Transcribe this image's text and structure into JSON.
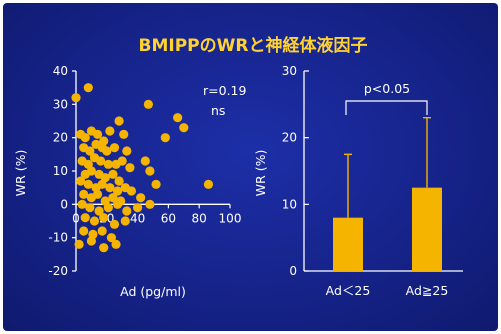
{
  "slide": {
    "title": "BMIPPのWRと神経体液因子"
  },
  "chart_data": [
    {
      "type": "scatter",
      "xlabel": "Ad (pg/ml)",
      "ylabel": "WR (%)",
      "xlim": [
        0,
        100
      ],
      "ylim": [
        -20,
        40
      ],
      "xticks": [
        "0",
        "20",
        "40",
        "60",
        "80",
        "100"
      ],
      "yticks": [
        "40",
        "30",
        "20",
        "10",
        "0",
        "-10",
        "-20"
      ],
      "annotations": [
        "r=0.19",
        "ns"
      ],
      "color": "#f5b400",
      "points": [
        [
          0,
          32
        ],
        [
          8,
          35
        ],
        [
          3,
          21
        ],
        [
          10,
          22
        ],
        [
          6,
          20
        ],
        [
          14,
          21
        ],
        [
          18,
          19
        ],
        [
          22,
          22
        ],
        [
          28,
          25
        ],
        [
          31,
          21
        ],
        [
          5,
          17
        ],
        [
          9,
          16
        ],
        [
          13,
          18
        ],
        [
          17,
          17
        ],
        [
          20,
          16
        ],
        [
          25,
          17
        ],
        [
          33,
          16
        ],
        [
          30,
          13
        ],
        [
          4,
          13
        ],
        [
          8,
          12
        ],
        [
          12,
          14
        ],
        [
          16,
          13
        ],
        [
          21,
          12
        ],
        [
          26,
          12
        ],
        [
          35,
          11
        ],
        [
          6,
          9
        ],
        [
          10,
          10
        ],
        [
          15,
          9
        ],
        [
          19,
          8
        ],
        [
          24,
          9
        ],
        [
          28,
          7
        ],
        [
          3,
          7
        ],
        [
          8,
          6
        ],
        [
          13,
          5
        ],
        [
          17,
          6
        ],
        [
          22,
          5
        ],
        [
          27,
          4
        ],
        [
          32,
          5
        ],
        [
          5,
          3
        ],
        [
          10,
          2
        ],
        [
          14,
          3
        ],
        [
          19,
          1
        ],
        [
          24,
          2
        ],
        [
          29,
          1
        ],
        [
          36,
          4
        ],
        [
          42,
          2
        ],
        [
          4,
          0
        ],
        [
          9,
          -1
        ],
        [
          15,
          -2
        ],
        [
          21,
          -1
        ],
        [
          27,
          0
        ],
        [
          33,
          -2
        ],
        [
          40,
          -1
        ],
        [
          48,
          0
        ],
        [
          6,
          -4
        ],
        [
          12,
          -5
        ],
        [
          18,
          -4
        ],
        [
          25,
          -6
        ],
        [
          32,
          -5
        ],
        [
          5,
          -8
        ],
        [
          11,
          -9
        ],
        [
          17,
          -8
        ],
        [
          23,
          -10
        ],
        [
          2,
          -12
        ],
        [
          10,
          -11
        ],
        [
          18,
          -13
        ],
        [
          26,
          -12
        ],
        [
          45,
          13
        ],
        [
          48,
          10
        ],
        [
          52,
          6
        ],
        [
          47,
          30
        ],
        [
          58,
          20
        ],
        [
          66,
          26
        ],
        [
          70,
          23
        ],
        [
          86,
          6
        ]
      ]
    },
    {
      "type": "bar",
      "xlabel": "",
      "ylabel": "WR (%)",
      "ylim": [
        0,
        30
      ],
      "yticks": [
        "30",
        "20",
        "10",
        "0"
      ],
      "categories": [
        "Ad＜25",
        "Ad≧25"
      ],
      "values": [
        8,
        12.5
      ],
      "error_upper": [
        17.5,
        23
      ],
      "annotation": "p<0.05",
      "color": "#f5b400"
    }
  ]
}
